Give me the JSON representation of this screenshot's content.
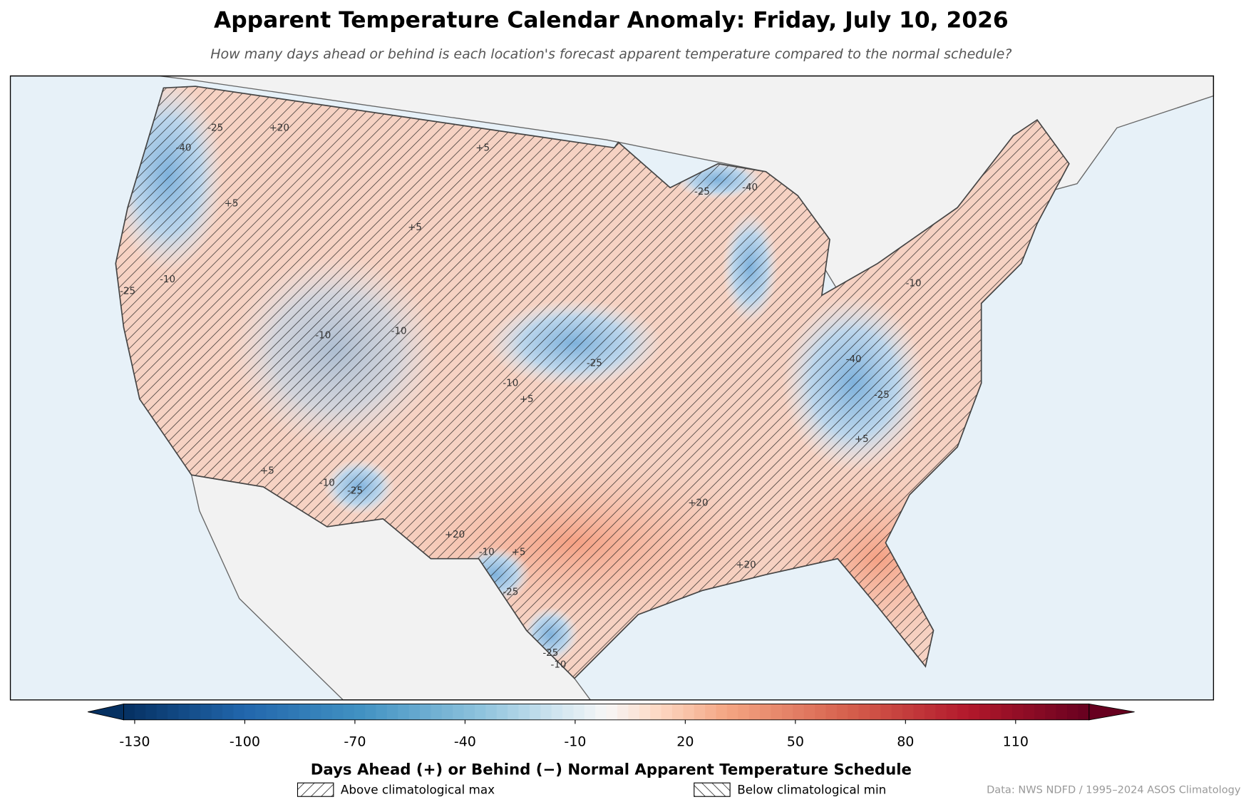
{
  "title": "Apparent Temperature Calendar Anomaly: Friday, July 10, 2026",
  "subtitle": "How many days ahead or behind is each location's forecast apparent temperature compared to the normal schedule?",
  "map": {
    "contour_labels": [
      "-25",
      "-40",
      "+5",
      "+20",
      "-25",
      "-10",
      "-10",
      "-10",
      "-10",
      "-25",
      "+5",
      "+5",
      "-25",
      "-10",
      "+20",
      "-10",
      "+5",
      "-25",
      "-25",
      "-10",
      "+20",
      "+20",
      "-40",
      "-25",
      "-40",
      "-10",
      "-25",
      "+5",
      "+5",
      "+5"
    ]
  },
  "colorbar": {
    "lim": [
      -133,
      130
    ],
    "ticks": [
      -130,
      -100,
      -70,
      -40,
      -10,
      20,
      50,
      80,
      110
    ],
    "label": "Days Ahead (+) or Behind (−) Normal Apparent Temperature Schedule"
  },
  "legend": [
    "Above climatological max",
    "Below climatological min"
  ],
  "source": "Data: NWS NDFD / 1995–2024 ASOS Climatology"
}
